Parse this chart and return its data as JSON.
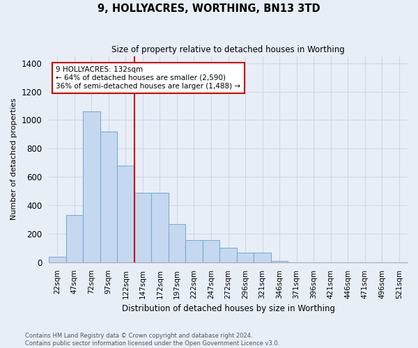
{
  "title": "9, HOLLYACRES, WORTHING, BN13 3TD",
  "subtitle": "Size of property relative to detached houses in Worthing",
  "xlabel": "Distribution of detached houses by size in Worthing",
  "ylabel": "Number of detached properties",
  "footer_line1": "Contains HM Land Registry data © Crown copyright and database right 2024.",
  "footer_line2": "Contains public sector information licensed under the Open Government Licence v3.0.",
  "categories": [
    "22sqm",
    "47sqm",
    "72sqm",
    "97sqm",
    "122sqm",
    "147sqm",
    "172sqm",
    "197sqm",
    "222sqm",
    "247sqm",
    "272sqm",
    "296sqm",
    "321sqm",
    "346sqm",
    "371sqm",
    "396sqm",
    "421sqm",
    "446sqm",
    "471sqm",
    "496sqm",
    "521sqm"
  ],
  "values": [
    40,
    330,
    1060,
    920,
    680,
    490,
    490,
    270,
    155,
    155,
    100,
    70,
    70,
    10,
    0,
    0,
    0,
    0,
    0,
    0,
    0
  ],
  "bar_color": "#c5d8ef",
  "bar_edge_color": "#7aadd4",
  "background_color": "#e8eef6",
  "grid_color": "#d0d8e8",
  "vline_color": "#cc0000",
  "vline_x_index": 4,
  "annotation_text": "9 HOLLYACRES: 132sqm\n← 64% of detached houses are smaller (2,590)\n36% of semi-detached houses are larger (1,488) →",
  "annotation_box_color": "white",
  "annotation_box_edge": "#cc0000",
  "ylim": [
    0,
    1450
  ],
  "yticks": [
    0,
    200,
    400,
    600,
    800,
    1000,
    1200,
    1400
  ]
}
